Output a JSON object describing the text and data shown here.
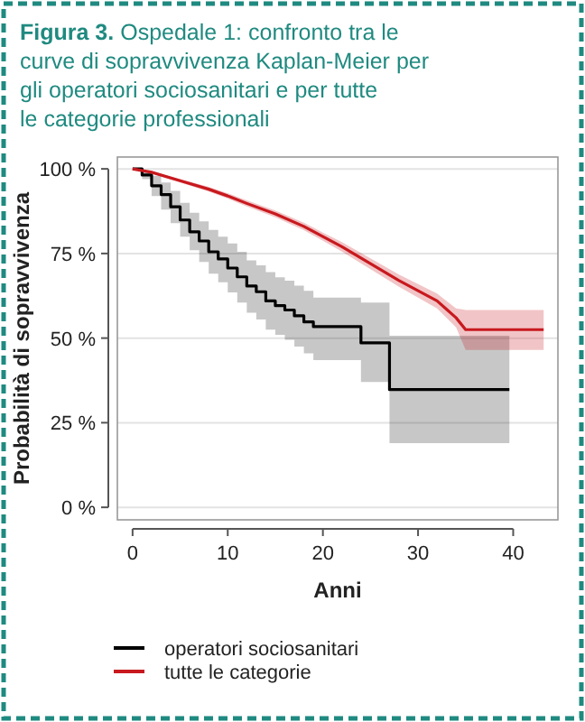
{
  "chart_data": {
    "type": "step",
    "title": "Figura 3. Ospedale 1: confronto tra le curve di sopravvivenza Kaplan-Meier per gli operatori sociosanitari e per tutte le categorie professionali",
    "xlabel": "Anni",
    "ylabel": "Probabilità di sopravvivenza",
    "xlim": [
      -1.6,
      44.7
    ],
    "xticks": [
      0,
      10,
      20,
      30,
      40
    ],
    "ylim": [
      -3.7,
      103.5
    ],
    "yticks": [
      {
        "value": 0,
        "label": "0 %"
      },
      {
        "value": 25,
        "label": "25 %"
      },
      {
        "value": 50,
        "label": "50 %"
      },
      {
        "value": 75,
        "label": "75 %"
      },
      {
        "value": 100,
        "label": "100 %"
      }
    ],
    "grid": "y",
    "legend": "bottom",
    "series": [
      {
        "name": "operatori sociosanitari",
        "color": "#000000",
        "x": [
          0,
          1,
          2,
          3,
          4,
          5,
          6,
          7,
          8,
          9,
          10,
          11,
          12,
          13,
          14,
          15,
          16,
          17,
          18,
          19,
          24,
          27,
          39.6
        ],
        "values": [
          100,
          98.2,
          95,
          92.4,
          88.8,
          84.9,
          81.4,
          78.7,
          75.5,
          73.4,
          70.7,
          68.1,
          65.4,
          63.7,
          61,
          59.6,
          58.3,
          56.6,
          54.8,
          53.4,
          48.6,
          34.8,
          34.8
        ],
        "lower": [
          100,
          97,
          92,
          88,
          84,
          80,
          76,
          72.5,
          69,
          66.5,
          63.5,
          60.5,
          57.5,
          55.5,
          52.5,
          51,
          49.5,
          47.5,
          45.5,
          43.5,
          37,
          19,
          19
        ],
        "upper": [
          100,
          99.5,
          98,
          96,
          93.5,
          90,
          87,
          84.5,
          82,
          80,
          78,
          75.5,
          73,
          71.5,
          69.5,
          68,
          67,
          65.5,
          64,
          62,
          60.5,
          50.7,
          50.7
        ]
      },
      {
        "name": "tutte le categorie",
        "type": "line",
        "color": "#c8191e",
        "x": [
          0,
          2,
          5,
          8,
          10,
          12,
          15,
          18,
          20,
          22,
          25,
          28,
          30,
          32,
          33,
          34,
          35,
          43.2
        ],
        "values": [
          100,
          99,
          96.5,
          94,
          92,
          89.8,
          86.7,
          83,
          80,
          77,
          72,
          67,
          64,
          61,
          58.5,
          56,
          52.5,
          52.5
        ],
        "lower": [
          100,
          98.7,
          96,
          93.3,
          91.2,
          88.9,
          85.7,
          81.9,
          78.8,
          75.6,
          70.4,
          65.2,
          62,
          58.8,
          56,
          53.2,
          46.5,
          46.5
        ],
        "upper": [
          100,
          99.3,
          97,
          94.7,
          92.8,
          90.7,
          87.7,
          84.1,
          81.2,
          78.4,
          73.6,
          68.8,
          66,
          63.2,
          61,
          58.8,
          58.3,
          58.3
        ]
      }
    ]
  }
}
